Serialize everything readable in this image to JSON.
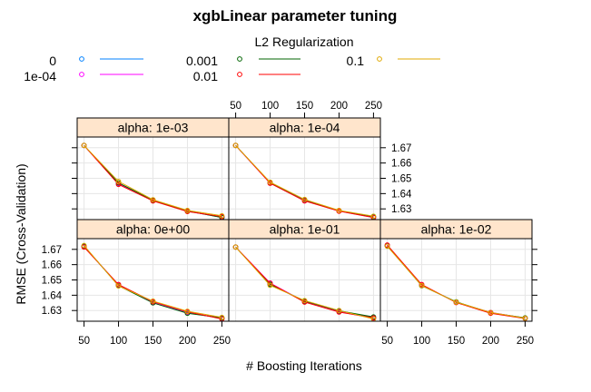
{
  "chart_data": {
    "type": "line",
    "title": "xgbLinear parameter tuning",
    "xlabel": "# Boosting Iterations",
    "ylabel": "RMSE (Cross-Validation)",
    "xlim": [
      40,
      260
    ],
    "ylim": [
      1.623,
      1.677
    ],
    "x_ticks": [
      50,
      100,
      150,
      200,
      250
    ],
    "y_ticks": [
      1.63,
      1.64,
      1.65,
      1.66,
      1.67
    ],
    "grid": true,
    "legend": {
      "title": "L2 Regularization",
      "placement": "top",
      "entries": [
        {
          "label": "0",
          "color": "#0080ff"
        },
        {
          "label": "1e-04",
          "color": "#ff00ff"
        },
        {
          "label": "0.001",
          "color": "#006400"
        },
        {
          "label": "0.01",
          "color": "#ff0000"
        },
        {
          "label": "0.1",
          "color": "#e0a800"
        }
      ]
    },
    "x": [
      50,
      100,
      150,
      200,
      250
    ],
    "panels": [
      {
        "strip": "alpha: 1e-03",
        "series": [
          {
            "name": "0",
            "values": [
              1.6715,
              1.6465,
              1.6355,
              1.6285,
              1.6245
            ]
          },
          {
            "name": "1e-04",
            "values": [
              1.6715,
              1.6463,
              1.6355,
              1.6285,
              1.6245
            ]
          },
          {
            "name": "0.001",
            "values": [
              1.6715,
              1.647,
              1.6357,
              1.6287,
              1.6243
            ]
          },
          {
            "name": "0.01",
            "values": [
              1.6715,
              1.646,
              1.6352,
              1.6283,
              1.625
            ]
          },
          {
            "name": "0.1",
            "values": [
              1.6715,
              1.648,
              1.636,
              1.629,
              1.6255
            ]
          }
        ]
      },
      {
        "strip": "alpha: 1e-04",
        "series": [
          {
            "name": "0",
            "values": [
              1.6715,
              1.647,
              1.6357,
              1.6287,
              1.6247
            ]
          },
          {
            "name": "1e-04",
            "values": [
              1.6715,
              1.6468,
              1.6355,
              1.6285,
              1.6245
            ]
          },
          {
            "name": "0.001",
            "values": [
              1.6715,
              1.6472,
              1.636,
              1.6288,
              1.625
            ]
          },
          {
            "name": "0.01",
            "values": [
              1.6715,
              1.6468,
              1.6352,
              1.6285,
              1.6243
            ]
          },
          {
            "name": "0.1",
            "values": [
              1.6715,
              1.6475,
              1.6362,
              1.629,
              1.6252
            ]
          }
        ]
      },
      {
        "strip": "alpha: 0e+00",
        "series": [
          {
            "name": "0",
            "values": [
              1.672,
              1.6465,
              1.6355,
              1.6285,
              1.625
            ]
          },
          {
            "name": "1e-04",
            "values": [
              1.6718,
              1.6468,
              1.6353,
              1.629,
              1.6248
            ]
          },
          {
            "name": "0.001",
            "values": [
              1.6722,
              1.6462,
              1.635,
              1.6282,
              1.6252
            ]
          },
          {
            "name": "0.01",
            "values": [
              1.6715,
              1.647,
              1.6358,
              1.6292,
              1.6245
            ]
          },
          {
            "name": "0.1",
            "values": [
              1.6725,
              1.646,
              1.6362,
              1.6295,
              1.6255
            ]
          }
        ]
      },
      {
        "strip": "alpha: 1e-01",
        "series": [
          {
            "name": "0",
            "values": [
              1.6715,
              1.6475,
              1.636,
              1.6295,
              1.6255
            ]
          },
          {
            "name": "1e-04",
            "values": [
              1.6715,
              1.648,
              1.6358,
              1.6292,
              1.625
            ]
          },
          {
            "name": "0.001",
            "values": [
              1.6715,
              1.647,
              1.6362,
              1.6298,
              1.6258
            ]
          },
          {
            "name": "0.01",
            "values": [
              1.6715,
              1.6478,
              1.6355,
              1.629,
              1.6252
            ]
          },
          {
            "name": "0.1",
            "values": [
              1.6715,
              1.6465,
              1.6365,
              1.63,
              1.6245
            ]
          }
        ]
      },
      {
        "strip": "alpha: 1e-02",
        "series": [
          {
            "name": "0",
            "values": [
              1.6725,
              1.6465,
              1.6355,
              1.6285,
              1.625
            ]
          },
          {
            "name": "1e-04",
            "values": [
              1.6725,
              1.6468,
              1.6353,
              1.6288,
              1.625
            ]
          },
          {
            "name": "0.001",
            "values": [
              1.6722,
              1.6462,
              1.6357,
              1.6285,
              1.6252
            ]
          },
          {
            "name": "0.01",
            "values": [
              1.6728,
              1.647,
              1.6352,
              1.6282,
              1.6248
            ]
          },
          {
            "name": "0.1",
            "values": [
              1.672,
              1.6463,
              1.6355,
              1.6287,
              1.625
            ]
          }
        ]
      }
    ]
  }
}
